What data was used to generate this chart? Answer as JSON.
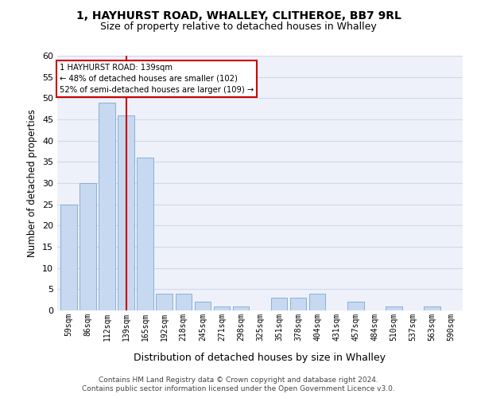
{
  "title1": "1, HAYHURST ROAD, WHALLEY, CLITHEROE, BB7 9RL",
  "title2": "Size of property relative to detached houses in Whalley",
  "xlabel": "Distribution of detached houses by size in Whalley",
  "ylabel": "Number of detached properties",
  "categories": [
    "59sqm",
    "86sqm",
    "112sqm",
    "139sqm",
    "165sqm",
    "192sqm",
    "218sqm",
    "245sqm",
    "271sqm",
    "298sqm",
    "325sqm",
    "351sqm",
    "378sqm",
    "404sqm",
    "431sqm",
    "457sqm",
    "484sqm",
    "510sqm",
    "537sqm",
    "563sqm",
    "590sqm"
  ],
  "values": [
    25,
    30,
    49,
    46,
    36,
    4,
    4,
    2,
    1,
    1,
    0,
    3,
    3,
    4,
    0,
    2,
    0,
    1,
    0,
    1,
    0
  ],
  "highlight_index": 3,
  "bar_color": "#c6d9f0",
  "bar_edge_color": "#7da7d4",
  "highlight_line_color": "#cc0000",
  "annotation_text": "1 HAYHURST ROAD: 139sqm\n← 48% of detached houses are smaller (102)\n52% of semi-detached houses are larger (109) →",
  "annotation_box_edge": "#cc0000",
  "ylim": [
    0,
    60
  ],
  "yticks": [
    0,
    5,
    10,
    15,
    20,
    25,
    30,
    35,
    40,
    45,
    50,
    55,
    60
  ],
  "footnote1": "Contains HM Land Registry data © Crown copyright and database right 2024.",
  "footnote2": "Contains public sector information licensed under the Open Government Licence v3.0.",
  "grid_color": "#d0d8e8",
  "bg_color": "#eef1f9"
}
